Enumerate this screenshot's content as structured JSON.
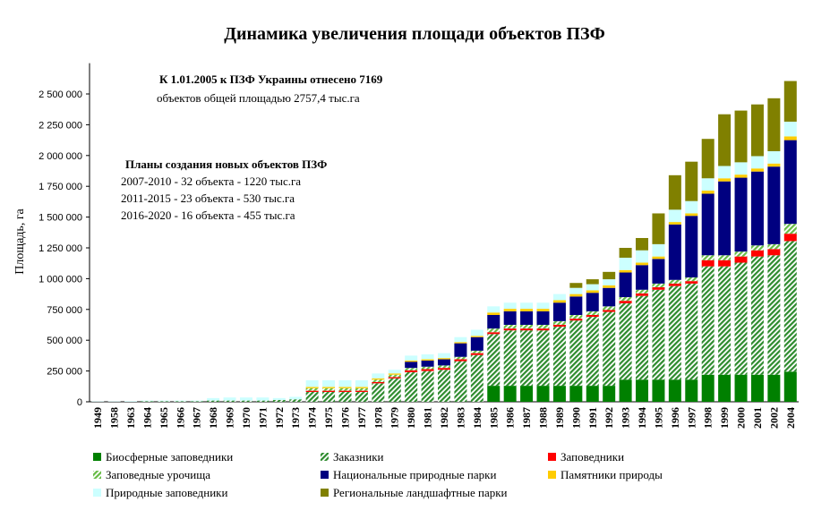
{
  "chart_data": {
    "type": "stacked_bar",
    "title": "Динамика увеличения площади объектов ПЗФ",
    "y_label": "Площадь, га",
    "annotations": [
      "К 1.01.2005 к ПЗФ Украины отнесено 7169",
      "объектов общей площадью 2757,4 тыс.га",
      "Планы создания новых объектов ПЗФ",
      "2007-2010 - 32 объекта - 1220 тыс.га",
      "2011-2015 - 23 объекта - 530 тыс.га",
      "2016-2020 - 16 объекта - 455 тыс.га"
    ],
    "categories": [
      "1949",
      "1958",
      "1963",
      "1964",
      "1965",
      "1966",
      "1967",
      "1968",
      "1969",
      "1970",
      "1971",
      "1972",
      "1973",
      "1974",
      "1975",
      "1976",
      "1977",
      "1978",
      "1979",
      "1980",
      "1981",
      "1982",
      "1983",
      "1984",
      "1985",
      "1986",
      "1987",
      "1988",
      "1989",
      "1990",
      "1991",
      "1992",
      "1993",
      "1994",
      "1995",
      "1996",
      "1997",
      "1998",
      "1999",
      "2000",
      "2001",
      "2002",
      "2004"
    ],
    "series": [
      {
        "name": "Биосферные заповедники",
        "color": "#008000",
        "hatch": false,
        "values": [
          0,
          0,
          0,
          0,
          0,
          0,
          0,
          0,
          0,
          0,
          0,
          0,
          0,
          0,
          0,
          0,
          0,
          0,
          0,
          0,
          0,
          0,
          0,
          0,
          130000,
          130000,
          130000,
          130000,
          130000,
          130000,
          130000,
          130000,
          180000,
          180000,
          180000,
          180000,
          180000,
          220000,
          220000,
          220000,
          220000,
          220000,
          245000
        ]
      },
      {
        "name": "Заказники",
        "color": "#2e8b2e",
        "hatch": true,
        "values": [
          0,
          0,
          0,
          5000,
          5000,
          5000,
          5000,
          10000,
          10000,
          10000,
          10000,
          15000,
          20000,
          80000,
          80000,
          80000,
          80000,
          150000,
          190000,
          240000,
          250000,
          260000,
          330000,
          380000,
          420000,
          450000,
          450000,
          450000,
          480000,
          530000,
          560000,
          600000,
          620000,
          680000,
          730000,
          760000,
          780000,
          880000,
          880000,
          910000,
          960000,
          970000,
          1060000
        ]
      },
      {
        "name": "Заповедники",
        "color": "#ff0000",
        "hatch": false,
        "values": [
          0,
          0,
          0,
          0,
          0,
          0,
          0,
          0,
          0,
          0,
          0,
          0,
          0,
          10000,
          10000,
          10000,
          10000,
          10000,
          10000,
          15000,
          15000,
          15000,
          15000,
          15000,
          15000,
          15000,
          15000,
          15000,
          15000,
          15000,
          15000,
          15000,
          20000,
          20000,
          20000,
          20000,
          20000,
          50000,
          50000,
          50000,
          50000,
          50000,
          60000
        ]
      },
      {
        "name": "Заповедные урочища",
        "color": "#66bb44",
        "hatch": true,
        "values": [
          0,
          0,
          0,
          0,
          0,
          0,
          0,
          0,
          0,
          0,
          0,
          0,
          0,
          20000,
          20000,
          20000,
          20000,
          20000,
          20000,
          20000,
          20000,
          20000,
          20000,
          20000,
          30000,
          30000,
          30000,
          30000,
          30000,
          30000,
          30000,
          30000,
          30000,
          30000,
          30000,
          30000,
          30000,
          40000,
          40000,
          40000,
          40000,
          40000,
          80000
        ]
      },
      {
        "name": "Национальные природные парки",
        "color": "#000080",
        "hatch": false,
        "values": [
          0,
          0,
          0,
          0,
          0,
          0,
          0,
          0,
          0,
          0,
          0,
          0,
          0,
          0,
          0,
          0,
          0,
          0,
          0,
          50000,
          50000,
          50000,
          110000,
          110000,
          110000,
          110000,
          110000,
          110000,
          150000,
          150000,
          150000,
          150000,
          200000,
          200000,
          200000,
          450000,
          500000,
          500000,
          600000,
          600000,
          600000,
          630000,
          680000
        ]
      },
      {
        "name": "Памятники природы",
        "color": "#ffcc00",
        "hatch": false,
        "values": [
          0,
          0,
          0,
          0,
          0,
          0,
          0,
          0,
          0,
          0,
          0,
          0,
          0,
          10000,
          10000,
          10000,
          10000,
          10000,
          10000,
          10000,
          10000,
          10000,
          10000,
          10000,
          20000,
          20000,
          20000,
          20000,
          20000,
          20000,
          20000,
          20000,
          20000,
          20000,
          20000,
          20000,
          20000,
          25000,
          25000,
          25000,
          25000,
          25000,
          30000
        ]
      },
      {
        "name": "Природные заповедники",
        "color": "#ccffff",
        "hatch": false,
        "values": [
          3000,
          3000,
          5000,
          5000,
          5000,
          5000,
          5000,
          20000,
          25000,
          25000,
          25000,
          15000,
          20000,
          55000,
          55000,
          55000,
          55000,
          40000,
          30000,
          40000,
          40000,
          40000,
          40000,
          50000,
          50000,
          50000,
          50000,
          50000,
          50000,
          50000,
          50000,
          50000,
          100000,
          100000,
          100000,
          100000,
          100000,
          100000,
          100000,
          100000,
          100000,
          100000,
          120000
        ]
      },
      {
        "name": "Региональные ландшафтные парки",
        "color": "#808000",
        "hatch": false,
        "values": [
          0,
          0,
          0,
          0,
          0,
          0,
          0,
          0,
          0,
          0,
          0,
          0,
          0,
          0,
          0,
          0,
          0,
          0,
          0,
          0,
          0,
          0,
          0,
          0,
          0,
          0,
          0,
          0,
          0,
          40000,
          40000,
          60000,
          80000,
          100000,
          250000,
          280000,
          320000,
          320000,
          420000,
          420000,
          420000,
          430000,
          330000
        ]
      }
    ],
    "ylim": [
      0,
      2750000
    ],
    "yticks": [
      0,
      {
        "value": 250000,
        "label": "250 000"
      },
      {
        "value": 500000,
        "label": "500 000"
      },
      {
        "value": 750000,
        "label": "750 000"
      },
      {
        "value": 1000000,
        "label": "1 000 000"
      },
      {
        "value": 1250000,
        "label": "1 250 000"
      },
      {
        "value": 1500000,
        "label": "1 500 000"
      },
      {
        "value": 1750000,
        "label": "1 750 000"
      },
      {
        "value": 2000000,
        "label": "2 000 000"
      },
      {
        "value": 2250000,
        "label": "2 250 000"
      },
      {
        "value": 2500000,
        "label": "2 500 000"
      }
    ],
    "grid": false
  }
}
